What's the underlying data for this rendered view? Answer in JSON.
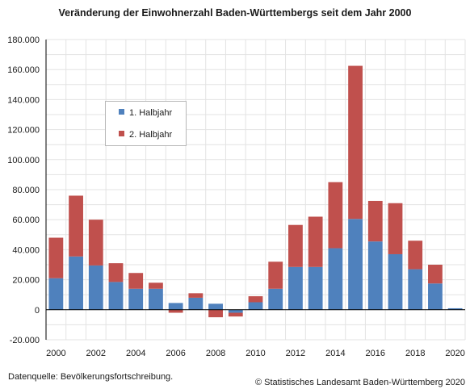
{
  "colors": {
    "h1": "#4f81bd",
    "h2": "#c0504d",
    "grid": "#e3e3e3",
    "axis": "#000000"
  },
  "chart_data": {
    "type": "bar",
    "stacked": true,
    "title": "Veränderung der Einwohnerzahl Baden-Württembergs seit dem Jahr 2000",
    "x": [
      2000,
      2001,
      2002,
      2003,
      2004,
      2005,
      2006,
      2007,
      2008,
      2009,
      2010,
      2011,
      2012,
      2013,
      2014,
      2015,
      2016,
      2017,
      2018,
      2019,
      2020
    ],
    "x_tick_labels": [
      "2000",
      "2002",
      "2004",
      "2006",
      "2008",
      "2010",
      "2012",
      "2014",
      "2016",
      "2018",
      "2020"
    ],
    "y_tick_labels": [
      "-20.000",
      "0",
      "20.000",
      "40.000",
      "60.000",
      "80.000",
      "100.000",
      "120.000",
      "140.000",
      "160.000",
      "180.000"
    ],
    "ylim": [
      -20000,
      180000
    ],
    "grid": true,
    "legend_position": "upper-left inside plot",
    "series": [
      {
        "name": "1. Halbjahr",
        "color": "#4f81bd",
        "values": [
          21000,
          35500,
          29500,
          18500,
          14000,
          14000,
          4500,
          8000,
          4000,
          -2000,
          5000,
          14000,
          28500,
          28500,
          41000,
          60500,
          45500,
          37000,
          27000,
          17500,
          1000
        ]
      },
      {
        "name": "2. Halbjahr",
        "color": "#c0504d",
        "values": [
          27000,
          40500,
          30500,
          12500,
          10500,
          4000,
          -2000,
          3000,
          -5000,
          -2500,
          4000,
          18000,
          28000,
          33500,
          44000,
          102000,
          27000,
          34000,
          19000,
          12500,
          null
        ]
      }
    ]
  },
  "footer": {
    "source": "Datenquelle: Bevölkerungsfortschreibung.",
    "copyright": "© Statistisches Landesamt Baden-Württemberg 2020"
  }
}
